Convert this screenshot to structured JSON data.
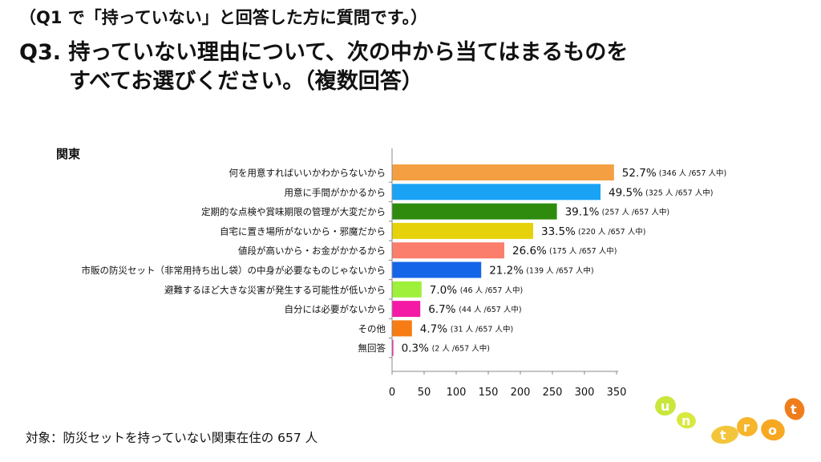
{
  "header": {
    "sub_heading": "（Q1 で「持っていない」と回答した方に質問です。）",
    "question_line1": "Q3. 持っていない理由について、次の中から当てはまるものを",
    "question_line2": "すべてお選びください。（複数回答）"
  },
  "chart_data": {
    "type": "bar",
    "orientation": "horizontal",
    "title": "関東",
    "categories": [
      "何を用意すればいいかわからないから",
      "用意に手間がかかるから",
      "定期的な点検や賞味期限の管理が大変だから",
      "自宅に置き場所がないから・邪魔だから",
      "値段が高いから・お金がかかるから",
      "市販の防災セット（非常用持ち出し袋）の中身が必要なものじゃないから",
      "避難するほど大きな災害が発生する可能性が低いから",
      "自分には必要がないから",
      "その他",
      "無回答"
    ],
    "values": [
      346,
      325,
      257,
      220,
      175,
      139,
      46,
      44,
      31,
      2
    ],
    "percent_labels": [
      "52.7%",
      "49.5%",
      "39.1%",
      "33.5%",
      "26.6%",
      "21.2%",
      "7.0%",
      "6.7%",
      "4.7%",
      "0.3%"
    ],
    "count_labels": [
      "(346 人 /657 人中)",
      "(325 人 /657 人中)",
      "(257 人 /657 人中)",
      "(220 人 /657 人中)",
      "(175 人 /657 人中)",
      "(139 人 /657 人中)",
      "(46 人 /657 人中)",
      "(44 人 /657 人中)",
      "(31 人 /657 人中)",
      "(2 人 /657 人中)"
    ],
    "colors": [
      "#f4a042",
      "#1aa3f5",
      "#2e8b0e",
      "#e6d20a",
      "#fb7d6b",
      "#1565e8",
      "#9ef03a",
      "#f51aa6",
      "#f87c14",
      "#f51aa6"
    ],
    "xlim": [
      0,
      350
    ],
    "xticks": [
      0,
      50,
      100,
      150,
      200,
      250,
      300,
      350
    ],
    "grid": false
  },
  "footer": {
    "note": "対象：防災セットを持っていない関東在住の 657 人"
  },
  "logo": {
    "letters": [
      "u",
      "n",
      "t",
      "r",
      "o",
      "t"
    ],
    "colors": [
      "#c8e63c",
      "#f3c53a",
      "#f7a823",
      "#f07d1c"
    ]
  }
}
